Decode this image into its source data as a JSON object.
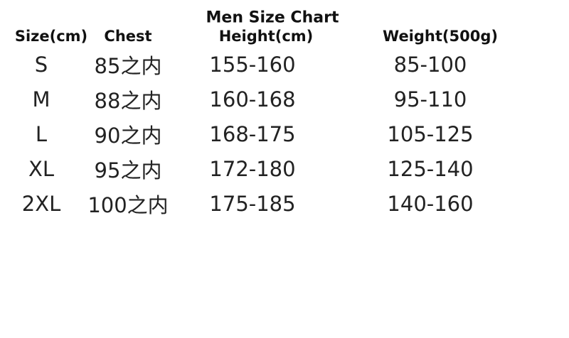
{
  "header": {
    "title": "Men Size Chart"
  },
  "table": {
    "columns": [
      "Size(cm)",
      "Chest",
      "Height(cm)",
      "Weight(500g)"
    ],
    "rows": [
      [
        "S",
        "85之内",
        "155-160",
        "85-100"
      ],
      [
        "M",
        "88之内",
        "160-168",
        "95-110"
      ],
      [
        "L",
        "90之内",
        "168-175",
        "105-125"
      ],
      [
        "XL",
        "95之内",
        "172-180",
        "125-140"
      ],
      [
        "2XL",
        "100之内",
        "175-185",
        "140-160"
      ]
    ]
  }
}
